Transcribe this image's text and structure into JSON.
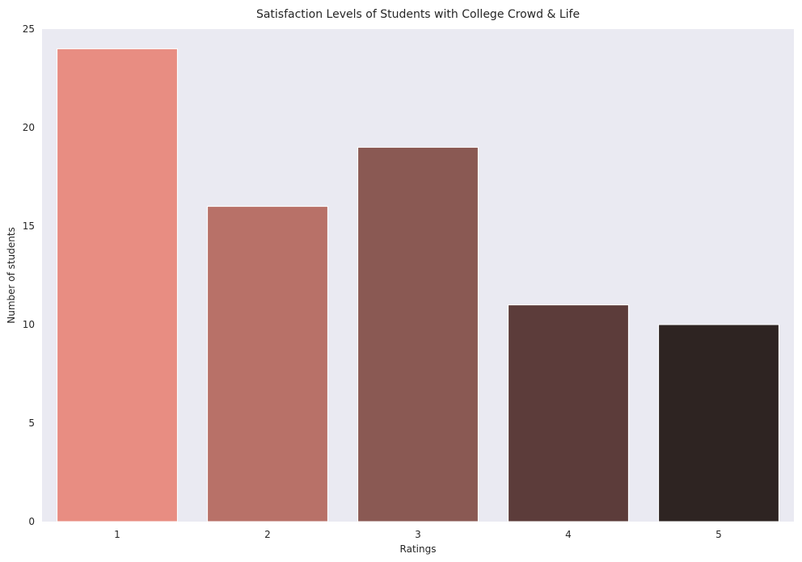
{
  "chart_data": {
    "type": "bar",
    "title": "Satisfaction Levels of Students with College Crowd & Life",
    "xlabel": "Ratings",
    "ylabel": "Number of students",
    "categories": [
      "1",
      "2",
      "3",
      "4",
      "5"
    ],
    "values": [
      24,
      16,
      19,
      11,
      10
    ],
    "ylim": [
      0,
      25
    ],
    "yticks": [
      "0",
      "5",
      "10",
      "15",
      "20",
      "25"
    ],
    "grid": false,
    "colors": [
      "#e88d82",
      "#b87168",
      "#8a5953",
      "#5c3c3a",
      "#2e2422"
    ],
    "background": "#eaeaf2"
  }
}
